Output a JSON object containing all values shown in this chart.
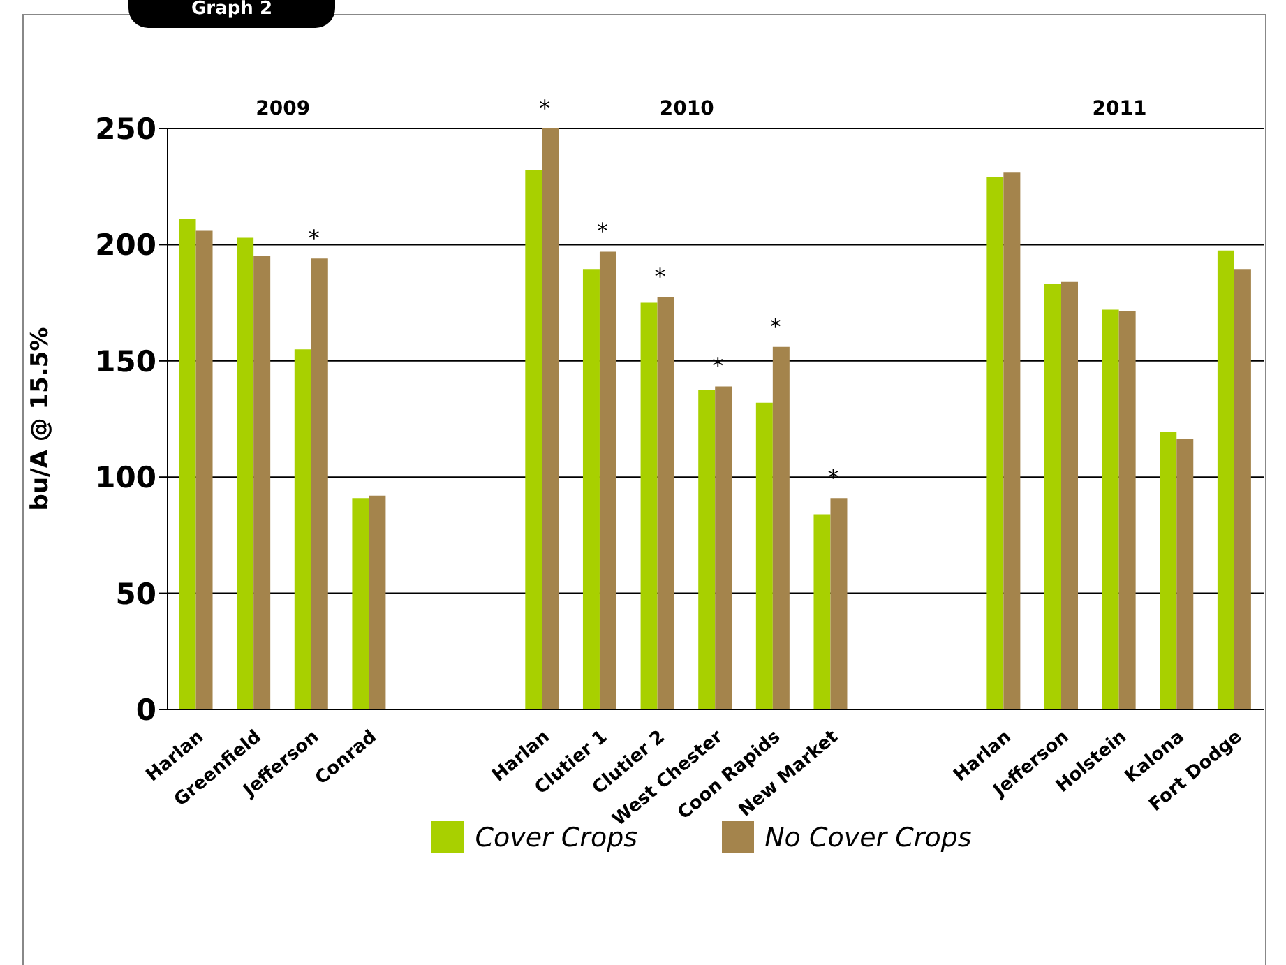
{
  "chart_data": {
    "type": "bar",
    "title": "Graph 2",
    "ylabel": "bu/A @ 15.5%",
    "categories": [
      "Harlan",
      "Greenfield",
      "Jefferson",
      "Conrad",
      null,
      null,
      "Harlan",
      "Clutier 1",
      "Clutier 2",
      "West Chester",
      "Coon Rapids",
      "New Market",
      null,
      null,
      "Harlan",
      "Jefferson",
      "Holstein",
      "Kalona",
      "Fort Dodge"
    ],
    "series": [
      {
        "name": "Cover Crops",
        "color": "#a8d000",
        "values": [
          211,
          203,
          155,
          91,
          null,
          null,
          232,
          189.5,
          175,
          137.5,
          132,
          84,
          null,
          null,
          229,
          183,
          172,
          119.5,
          197.5
        ]
      },
      {
        "name": "No Cover Crops",
        "color": "#a4844c",
        "values": [
          206,
          195,
          194,
          92,
          null,
          null,
          250,
          197,
          177.5,
          139,
          156,
          91,
          null,
          null,
          231,
          184,
          171.5,
          116.5,
          189.5
        ],
        "value_labels": [
          null,
          null,
          "*",
          null,
          null,
          null,
          "*",
          "*",
          "*",
          "*",
          "*",
          "*",
          null,
          null,
          null,
          null,
          null,
          null,
          null
        ]
      }
    ],
    "annotations": [
      "2009",
      "2010",
      "2011"
    ],
    "ylim": [
      0,
      250
    ],
    "yticks": [
      0,
      50,
      100,
      150,
      200,
      250
    ],
    "grid": "y",
    "legend": "bottom"
  }
}
